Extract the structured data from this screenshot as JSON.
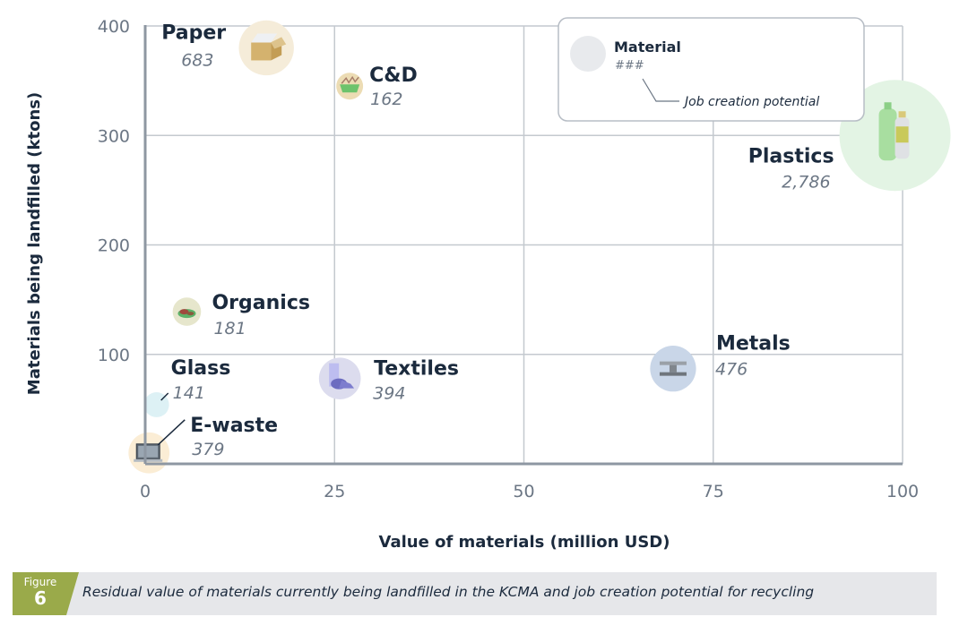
{
  "chart_data": {
    "type": "scatter",
    "subtype": "bubble",
    "xlabel": "Value of materials (million USD)",
    "ylabel": "Materials being landfilled (ktons)",
    "xlim": [
      0,
      100
    ],
    "ylim": [
      0,
      400
    ],
    "x_ticks": [
      "0",
      "25",
      "50",
      "75",
      "100"
    ],
    "y_ticks": [
      "100",
      "200",
      "300",
      "400"
    ],
    "x_tick_values": [
      0,
      25,
      50,
      75,
      100
    ],
    "y_tick_values": [
      100,
      200,
      300,
      400
    ],
    "grid": true,
    "size_measure": "Job creation potential",
    "points": [
      {
        "name": "Paper",
        "x": 16,
        "y": 380,
        "size": 683,
        "size_label": "683",
        "color": "#f5ecd9",
        "icon": "box-icon"
      },
      {
        "name": "C&D",
        "x": 27,
        "y": 345,
        "size": 162,
        "size_label": "162",
        "color": "#ecdcb4",
        "icon": "dumpster-icon"
      },
      {
        "name": "Plastics",
        "x": 99,
        "y": 300,
        "size": 2786,
        "size_label": "2,786",
        "color": "#e3f4e4",
        "icon": "bottle-icon"
      },
      {
        "name": "Organics",
        "x": 5.5,
        "y": 139,
        "size": 181,
        "size_label": "181",
        "color": "#e6e6cc",
        "icon": "leaves-icon"
      },
      {
        "name": "Glass",
        "x": 1.5,
        "y": 54,
        "size": 141,
        "size_label": "141",
        "color": "#ddf1f5",
        "icon": "glass-icon"
      },
      {
        "name": "E-waste",
        "x": 0.5,
        "y": 10,
        "size": 379,
        "size_label": "379",
        "color": "#fbedd5",
        "icon": "laptop-icon"
      },
      {
        "name": "Textiles",
        "x": 25.7,
        "y": 78,
        "size": 394,
        "size_label": "394",
        "color": "#dcdcee",
        "icon": "fabric-roll-icon"
      },
      {
        "name": "Metals",
        "x": 69.7,
        "y": 87,
        "size": 476,
        "size_label": "476",
        "color": "#c9d6e8",
        "icon": "steel-beam-icon"
      }
    ],
    "legend": {
      "name": "Material",
      "value": "###",
      "size_note": "Job creation potential",
      "placement": "top-right"
    }
  },
  "caption": {
    "figure_word": "Figure",
    "figure_number": "6",
    "text": "Residual value of materials currently being landfilled in the KCMA and job creation potential for recycling",
    "badge_color": "#9aaa4a"
  }
}
